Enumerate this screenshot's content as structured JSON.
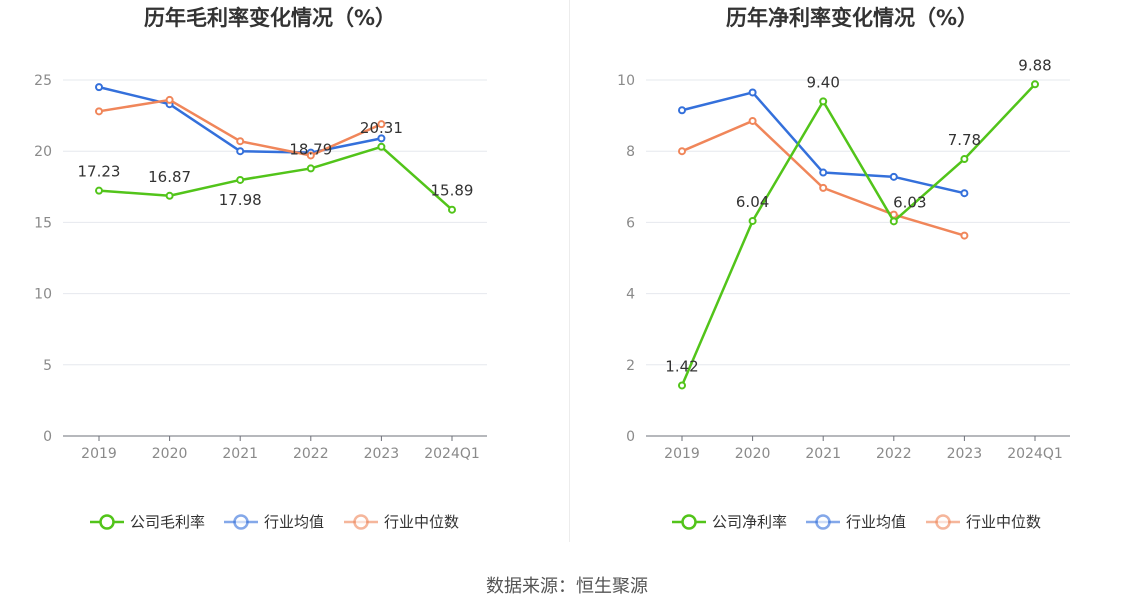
{
  "source": "数据来源：恒生聚源",
  "chart_data": [
    {
      "type": "line",
      "title": "历年毛利率变化情况（%）",
      "categories": [
        "2019",
        "2020",
        "2021",
        "2022",
        "2023",
        "2024Q1"
      ],
      "ylim": [
        0,
        25
      ],
      "yticks": [
        0,
        5,
        10,
        15,
        20,
        25
      ],
      "grid": true,
      "legend_position": "bottom",
      "series": [
        {
          "name": "公司毛利率",
          "color": "#52c41a",
          "values": [
            17.23,
            16.87,
            17.98,
            18.79,
            20.31,
            15.89
          ],
          "labels": [
            "17.23",
            "16.87",
            "17.98",
            "18.79",
            "20.31",
            "15.89"
          ]
        },
        {
          "name": "行业均值",
          "color": "#3470db",
          "values": [
            24.5,
            23.3,
            20.0,
            19.9,
            20.9,
            null
          ]
        },
        {
          "name": "行业中位数",
          "color": "#f0865a",
          "values": [
            22.8,
            23.6,
            20.7,
            19.7,
            21.9,
            null
          ]
        }
      ]
    },
    {
      "type": "line",
      "title": "历年净利率变化情况（%）",
      "categories": [
        "2019",
        "2020",
        "2021",
        "2022",
        "2023",
        "2024Q1"
      ],
      "ylim": [
        0,
        10
      ],
      "yticks": [
        0,
        2,
        4,
        6,
        8,
        10
      ],
      "grid": true,
      "legend_position": "bottom",
      "series": [
        {
          "name": "公司净利率",
          "color": "#52c41a",
          "values": [
            1.42,
            6.04,
            9.4,
            6.03,
            7.78,
            9.88
          ],
          "labels": [
            "1.42",
            "6.04",
            "9.40",
            "6.03",
            "7.78",
            "9.88"
          ]
        },
        {
          "name": "行业均值",
          "color": "#3470db",
          "values": [
            9.15,
            9.65,
            7.4,
            7.28,
            6.82,
            null
          ]
        },
        {
          "name": "行业中位数",
          "color": "#f0865a",
          "values": [
            8.0,
            8.85,
            6.97,
            6.22,
            5.63,
            null
          ]
        }
      ]
    }
  ]
}
